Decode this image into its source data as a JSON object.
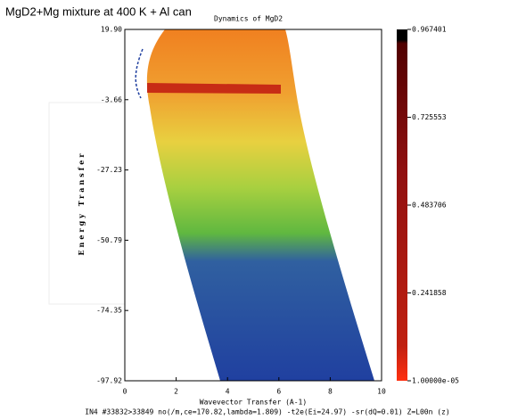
{
  "chart_data": {
    "type": "heatmap",
    "title": "MgD2+Mg mixture at 400 K + Al can",
    "subtitle": "Dynamics of MgD2",
    "x_label": "Wavevector Transfer (A-1)",
    "y_label": "Energy Transfer",
    "footer": "IN4 #33832>33849 no(/m,ce=170.82,lambda=1.809) -t2e(Ei=24.97) -sr(dQ=0.01) Z=L00n (z)",
    "xlim": [
      0,
      10
    ],
    "xticks": [
      0,
      2,
      4,
      6,
      8,
      10
    ],
    "ylim": [
      -97.92,
      19.9
    ],
    "yticks": [
      {
        "value": 19.9,
        "label": "19.90"
      },
      -3.66,
      -27.23,
      -50.79,
      -74.35,
      -97.92
    ],
    "colorbar_lim": [
      1e-05,
      0.967401
    ],
    "colorbar_ticks": [
      0.967401,
      0.725553,
      0.483706,
      0.241858,
      {
        "value": 1e-05,
        "label": "1.00000e-05"
      }
    ]
  }
}
